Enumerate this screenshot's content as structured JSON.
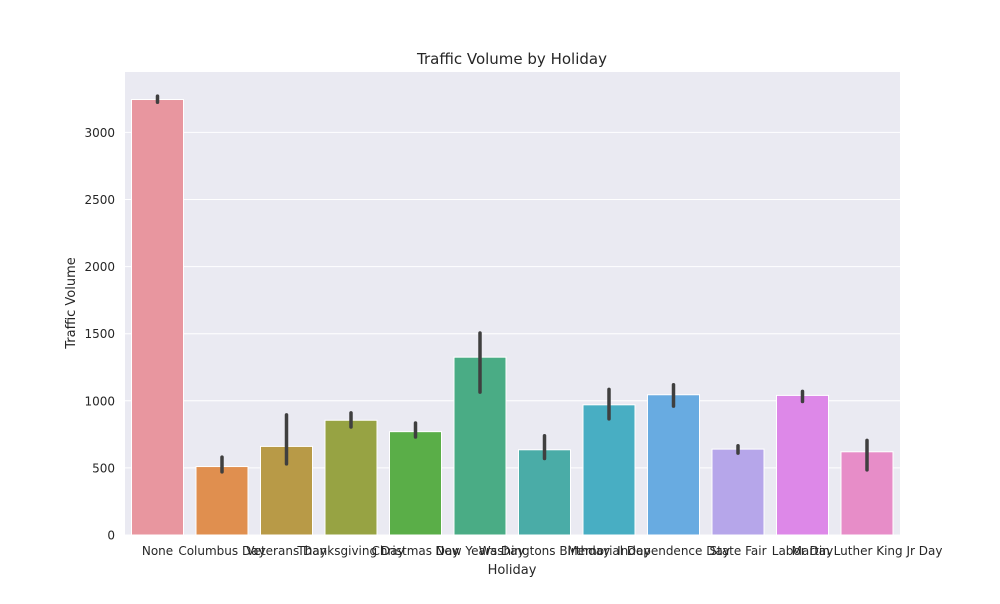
{
  "chart_data": {
    "type": "bar",
    "title": "Traffic Volume by Holiday",
    "xlabel": "Holiday",
    "ylabel": "Traffic Volume",
    "ylim": [
      0,
      3450
    ],
    "yticks": [
      0,
      500,
      1000,
      1500,
      2000,
      2500,
      3000
    ],
    "grid": true,
    "legend": "none",
    "categories": [
      "None",
      "Columbus Day",
      "Veterans Day",
      "Thanksgiving Day",
      "Christmas Day",
      "New Years Day",
      "Washingtons Birthday",
      "Memorial Day",
      "Independence Day",
      "State Fair",
      "Labor Day",
      "Martin Luther King Jr Day"
    ],
    "values": [
      3245,
      510,
      660,
      855,
      770,
      1325,
      635,
      970,
      1045,
      640,
      1040,
      620
    ],
    "error_low": [
      3225,
      470,
      530,
      805,
      730,
      1065,
      570,
      865,
      960,
      610,
      995,
      485
    ],
    "error_high": [
      3270,
      580,
      895,
      910,
      835,
      1505,
      740,
      1085,
      1120,
      665,
      1070,
      705
    ],
    "colors": [
      "#e8969f",
      "#e08f4f",
      "#b89a47",
      "#97a343",
      "#5aae48",
      "#4aac85",
      "#4aaca7",
      "#48aec3",
      "#68abe1",
      "#b6a6ea",
      "#dd88e8",
      "#e78dc8"
    ]
  }
}
